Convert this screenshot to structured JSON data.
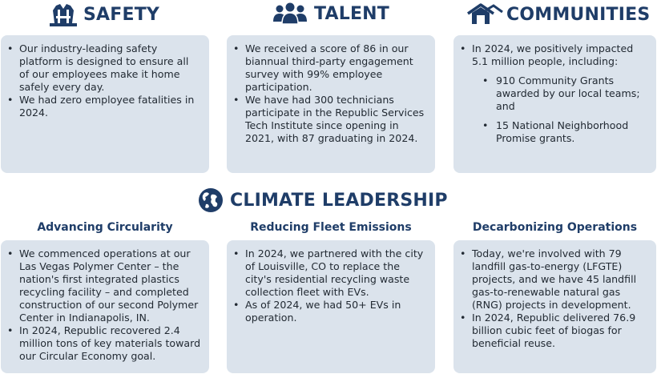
{
  "safety": {
    "title": "SAFETY",
    "icon": "worker-vest-icon",
    "bullets": [
      "Our industry-leading safety platform is designed to ensure all of our employees make it home safely every day.",
      "We had zero employee fatalities in 2024."
    ]
  },
  "talent": {
    "title": "TALENT",
    "icon": "people-group-icon",
    "bullets": [
      "We received a score of 86 in our biannual third-party engagement survey with 99% employee participation.",
      "We have had 300 technicians participate in the Republic Services Tech Institute since opening in 2021, with 87 graduating in 2024."
    ]
  },
  "communities": {
    "title": "COMMUNITIES",
    "icon": "houses-icon",
    "intro": "In 2024, we positively impacted 5.1 million people, including:",
    "sub_bullets": [
      "910 Community Grants awarded by our local teams; and",
      "15 National Neighborhood Promise grants."
    ]
  },
  "climate": {
    "title": "CLIMATE LEADERSHIP",
    "icon": "globe-icon",
    "columns": [
      {
        "heading": "Advancing Circularity",
        "bullets": [
          "We commenced operations at our Las Vegas Polymer Center – the nation's first integrated plastics recycling facility – and completed construction of our second Polymer Center in Indianapolis, IN.",
          "In 2024, Republic recovered 2.4 million tons of key materials toward our Circular Economy goal."
        ]
      },
      {
        "heading": "Reducing Fleet Emissions",
        "bullets": [
          "In 2024, we partnered with the city of Louisville, CO to replace the city's residential recycling waste collection fleet with EVs.",
          "As of 2024, we had 50+ EVs in operation."
        ]
      },
      {
        "heading": "Decarbonizing Operations",
        "bullets": [
          "Today, we're involved with 79 landfill gas-to-energy (LFGTE) projects, and we have 45 landfill gas-to-renewable natural gas (RNG) projects in development.",
          "In 2024, Republic delivered 76.9 billion cubic feet of biogas for beneficial reuse."
        ]
      }
    ]
  },
  "colors": {
    "heading": "#1f3d68",
    "card_background": "#dbe3ec",
    "body_text": "#222a33"
  }
}
